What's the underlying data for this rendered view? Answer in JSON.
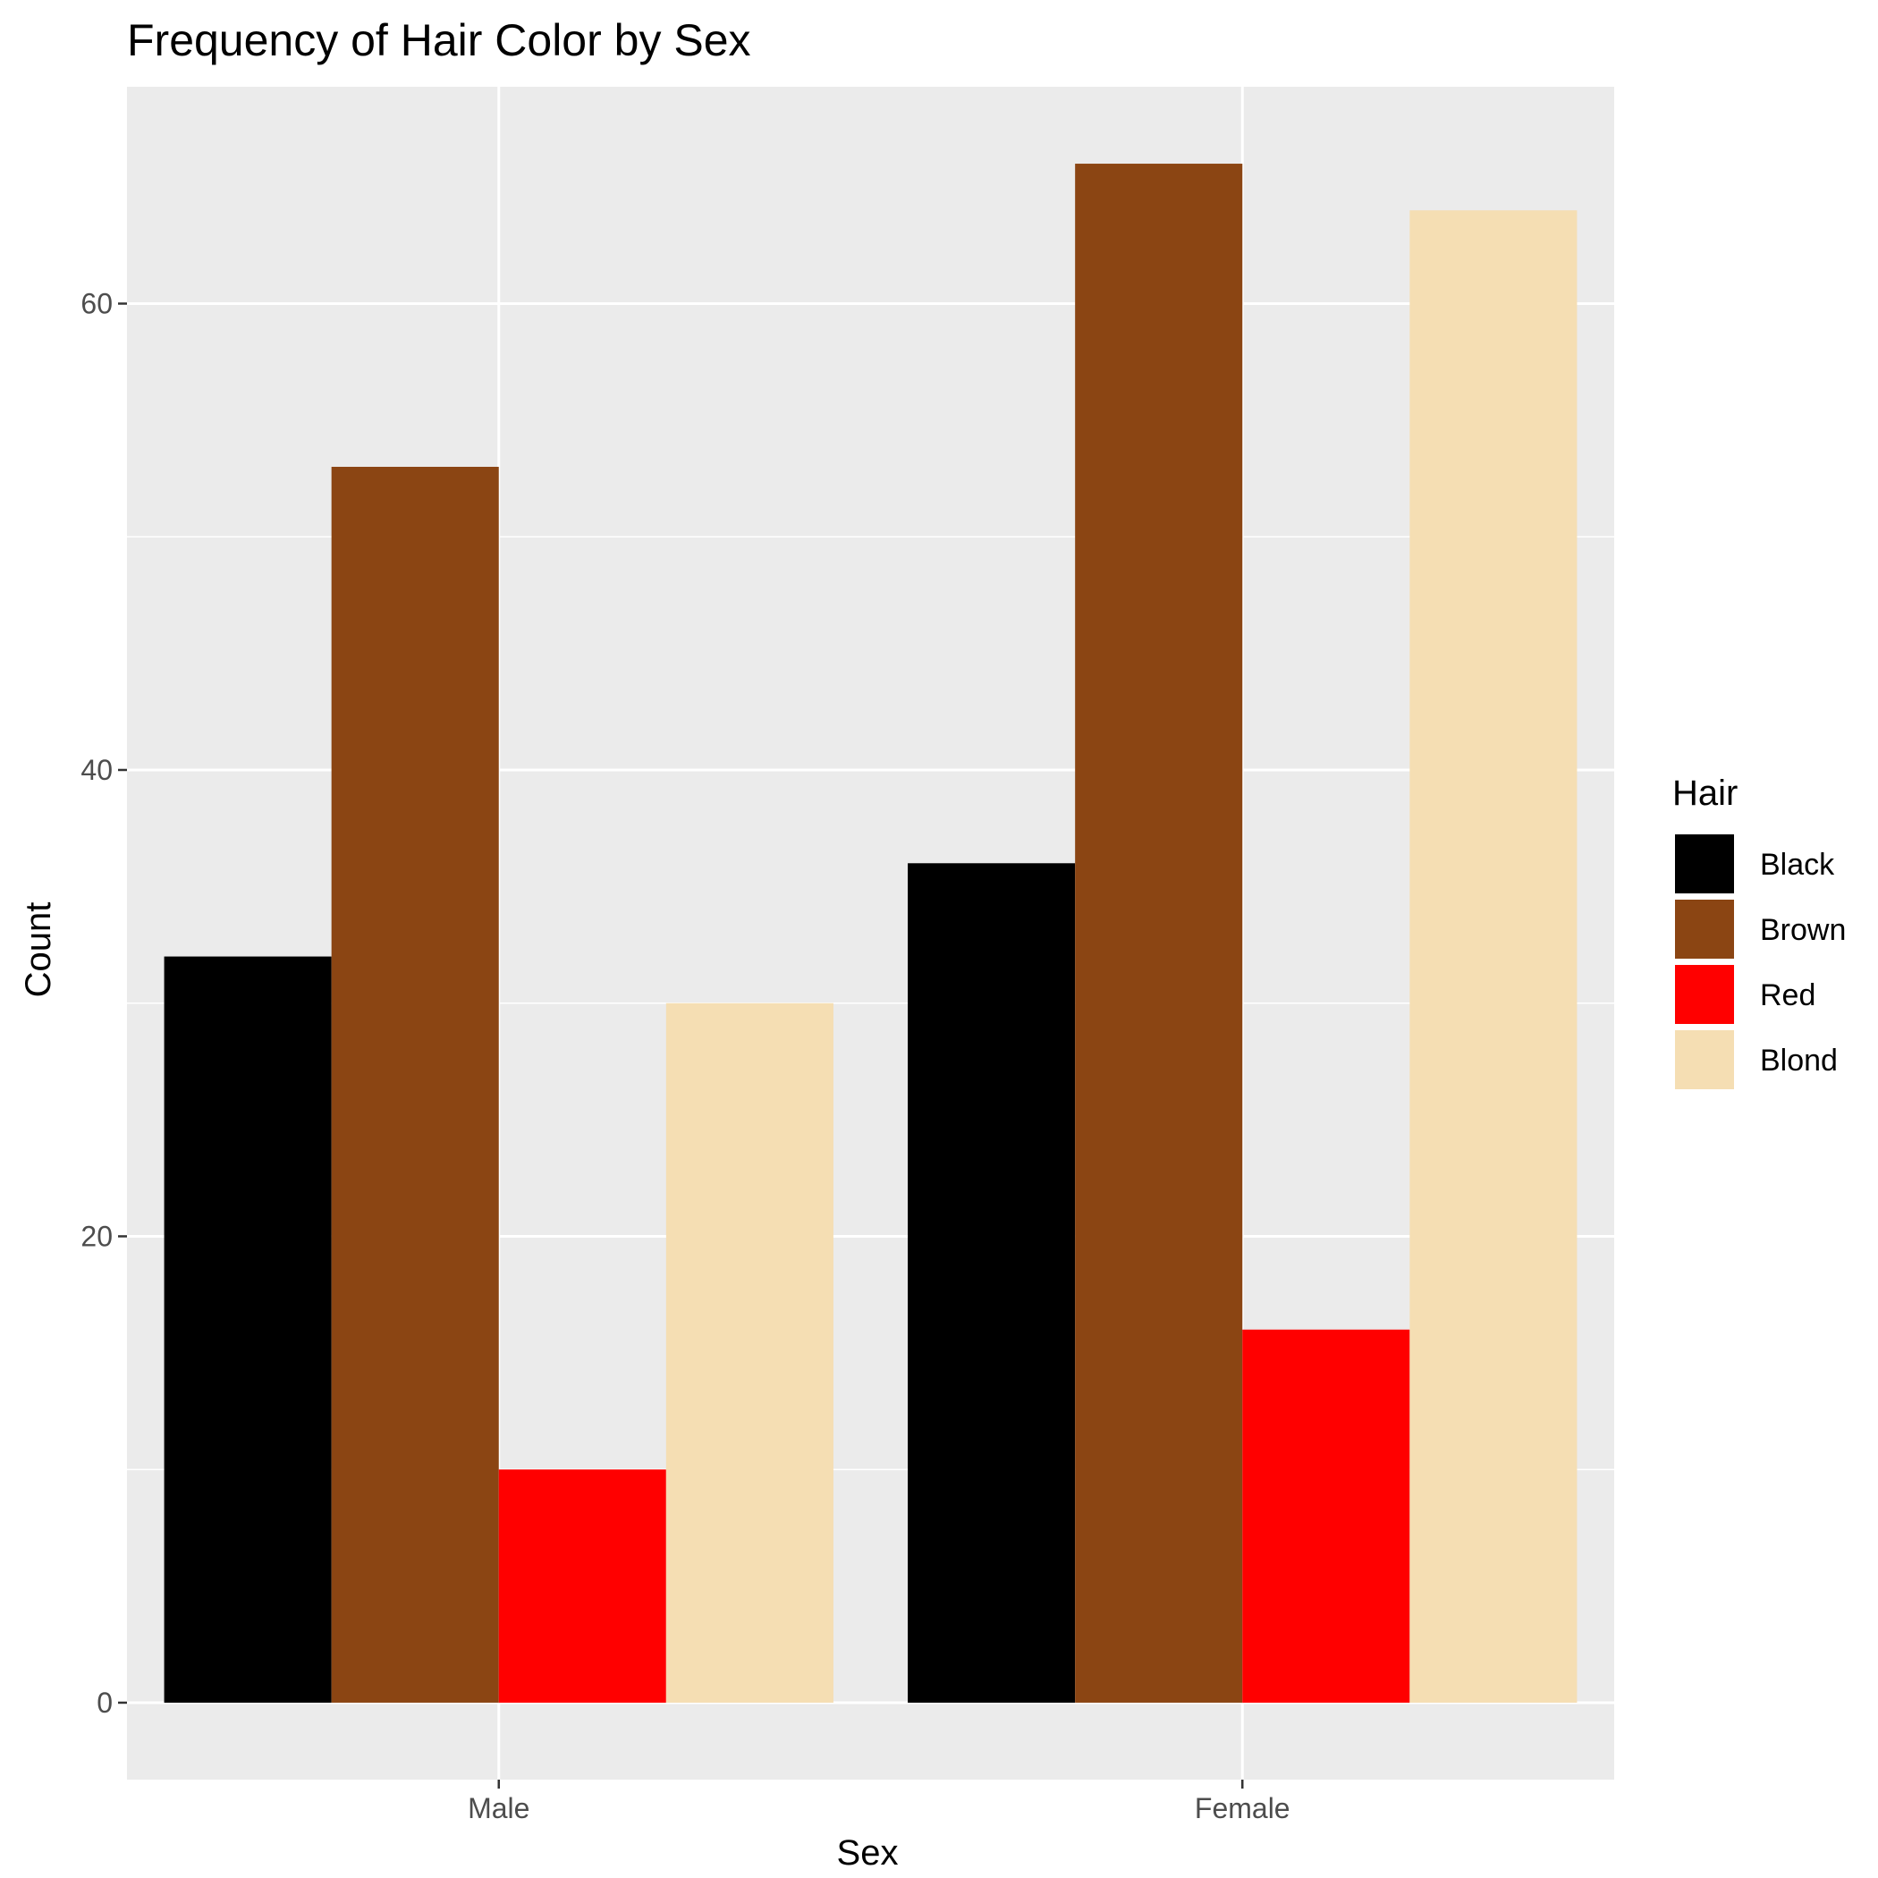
{
  "chart_data": {
    "type": "bar",
    "title": "Frequency of Hair Color by Sex",
    "xlabel": "Sex",
    "ylabel": "Count",
    "categories": [
      "Male",
      "Female"
    ],
    "series": [
      {
        "name": "Black",
        "color": "#000000",
        "values": [
          32,
          36
        ]
      },
      {
        "name": "Brown",
        "color": "#8B4513",
        "values": [
          53,
          66
        ]
      },
      {
        "name": "Red",
        "color": "#FF0000",
        "values": [
          10,
          16
        ]
      },
      {
        "name": "Blond",
        "color": "#F5DEB3",
        "values": [
          30,
          64
        ]
      }
    ],
    "ylim": [
      -3.3,
      69.3
    ],
    "yticks": [
      0,
      20,
      40,
      60
    ],
    "grid": true,
    "legend": {
      "title": "Hair",
      "placement": "right"
    },
    "panel_background": "#EBEBEB",
    "grid_color": "#FFFFFF"
  }
}
